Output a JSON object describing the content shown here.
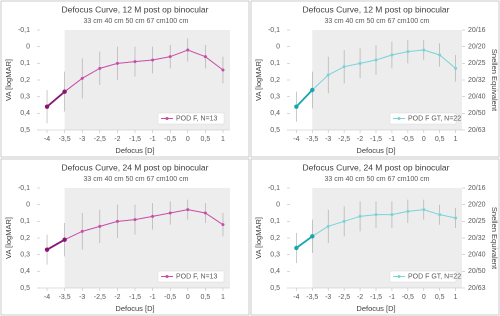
{
  "chart_data": [
    {
      "type": "line",
      "title": "Defocus Curve, 12 M post op binocular",
      "top_labels": [
        "33 cm",
        "40 cm",
        "50 cm",
        "67 cm",
        "100 cm"
      ],
      "x_label": "Defocus [D]",
      "y_label": "VA [logMAR]",
      "x": [
        -4,
        -3.5,
        -3,
        -2.5,
        -2,
        -1.5,
        -1,
        -0.5,
        0,
        0.5,
        1
      ],
      "xlim": [
        -4.2,
        1.2
      ],
      "xticks": [
        -4,
        {
          "value": -3.5,
          "label": "-3,5"
        },
        -3,
        {
          "value": -2.5,
          "label": "-2,5"
        },
        -2,
        {
          "value": -1.5,
          "label": "-1,5"
        },
        -1,
        {
          "value": -0.5,
          "label": "-0,5"
        },
        0,
        {
          "value": 0.5,
          "label": "0,5"
        },
        1
      ],
      "ylim": [
        0.5,
        -0.1
      ],
      "yticks": [
        {
          "value": -0.1,
          "label": "-0,1"
        },
        0,
        {
          "value": 0.1,
          "label": "0,1"
        },
        {
          "value": 0.2,
          "label": "0,2"
        },
        {
          "value": 0.3,
          "label": "0,3"
        },
        {
          "value": 0.4,
          "label": "0,4"
        },
        {
          "value": 0.5,
          "label": "0,5"
        }
      ],
      "series": [
        {
          "name": "POD F, N=13",
          "color": "#c84ba6",
          "dark_color": "#8a1570",
          "values": [
            0.36,
            0.27,
            0.19,
            0.13,
            0.1,
            0.09,
            0.08,
            0.06,
            0.02,
            0.06,
            0.14
          ],
          "errors": [
            0.1,
            0.12,
            0.12,
            0.1,
            0.1,
            0.09,
            0.08,
            0.07,
            0.07,
            0.07,
            0.08
          ]
        }
      ]
    },
    {
      "type": "line",
      "title": "Defocus Curve, 12 M post op binocular",
      "top_labels": [
        "33 cm",
        "40 cm",
        "50 cm",
        "67 cm",
        "100 cm"
      ],
      "x_label": "Defocus [D]",
      "y_label": "VA [logMAR]",
      "y2_label": "Snellen Equivalent",
      "x": [
        -4,
        -3.5,
        -3,
        -2.5,
        -2,
        -1.5,
        -1,
        -0.5,
        0,
        0.5,
        1
      ],
      "xlim": [
        -4.2,
        1.2
      ],
      "xticks": [
        -4,
        {
          "value": -3.5,
          "label": "-3,5"
        },
        -3,
        {
          "value": -2.5,
          "label": "-2,5"
        },
        -2,
        {
          "value": -1.5,
          "label": "-1,5"
        },
        -1,
        {
          "value": -0.5,
          "label": "-0,5"
        },
        0,
        {
          "value": 0.5,
          "label": "0,5"
        },
        1
      ],
      "ylim": [
        0.5,
        -0.1
      ],
      "yticks": [
        {
          "value": -0.1,
          "label": "-0,1"
        },
        0,
        {
          "value": 0.1,
          "label": "0,1"
        },
        {
          "value": 0.2,
          "label": "0,2"
        },
        {
          "value": 0.3,
          "label": "0,3"
        },
        {
          "value": 0.4,
          "label": "0,4"
        },
        {
          "value": 0.5,
          "label": "0,5"
        }
      ],
      "y2lim": [
        0.5,
        -0.1
      ],
      "y2ticks": [
        {
          "value": -0.1,
          "label": "20/16"
        },
        {
          "value": 0,
          "label": "20/20"
        },
        {
          "value": 0.1,
          "label": "20/25"
        },
        {
          "value": 0.2,
          "label": "20/32"
        },
        {
          "value": 0.3,
          "label": "20/40"
        },
        {
          "value": 0.4,
          "label": "20/50"
        },
        {
          "value": 0.5,
          "label": "20/63"
        }
      ],
      "series": [
        {
          "name": "POD F GT, N=22",
          "color": "#79d3d8",
          "dark_color": "#17a5ae",
          "values": [
            0.36,
            0.26,
            0.17,
            0.12,
            0.1,
            0.08,
            0.05,
            0.03,
            0.02,
            0.05,
            0.13
          ],
          "errors": [
            0.09,
            0.11,
            0.11,
            0.1,
            0.09,
            0.09,
            0.08,
            0.07,
            0.06,
            0.07,
            0.08
          ]
        }
      ]
    },
    {
      "type": "line",
      "title": "Defocus Curve, 24 M post op binocular",
      "top_labels": [
        "33 cm",
        "40 cm",
        "50 cm",
        "67 cm",
        "100 cm"
      ],
      "x_label": "Defocus [D]",
      "y_label": "VA [logMAR]",
      "x": [
        -4,
        -3.5,
        -3,
        -2.5,
        -2,
        -1.5,
        -1,
        -0.5,
        0,
        0.5,
        1
      ],
      "xlim": [
        -4.2,
        1.2
      ],
      "xticks": [
        -4,
        {
          "value": -3.5,
          "label": "-3,5"
        },
        -3,
        {
          "value": -2.5,
          "label": "-2,5"
        },
        -2,
        {
          "value": -1.5,
          "label": "-1,5"
        },
        -1,
        {
          "value": -0.5,
          "label": "-0,5"
        },
        0,
        {
          "value": 0.5,
          "label": "0,5"
        },
        1
      ],
      "ylim": [
        0.5,
        -0.1
      ],
      "yticks": [
        {
          "value": -0.1,
          "label": "-0,1"
        },
        0,
        {
          "value": 0.1,
          "label": "0,1"
        },
        {
          "value": 0.2,
          "label": "0,2"
        },
        {
          "value": 0.3,
          "label": "0,3"
        },
        {
          "value": 0.4,
          "label": "0,4"
        },
        {
          "value": 0.5,
          "label": "0,5"
        }
      ],
      "series": [
        {
          "name": "POD F, N=13",
          "color": "#c84ba6",
          "dark_color": "#8a1570",
          "values": [
            0.27,
            0.21,
            0.16,
            0.13,
            0.1,
            0.09,
            0.07,
            0.05,
            0.03,
            0.05,
            0.12
          ],
          "errors": [
            0.09,
            0.1,
            0.11,
            0.1,
            0.1,
            0.09,
            0.08,
            0.07,
            0.06,
            0.06,
            0.07
          ]
        }
      ]
    },
    {
      "type": "line",
      "title": "Defocus Curve, 24 M post op binocular",
      "top_labels": [
        "33 cm",
        "40 cm",
        "50 cm",
        "67 cm",
        "100 cm"
      ],
      "x_label": "Defocus [D]",
      "y_label": "VA [logMAR]",
      "y2_label": "Snellen Equivalent",
      "x": [
        -4,
        -3.5,
        -3,
        -2.5,
        -2,
        -1.5,
        -1,
        -0.5,
        0,
        0.5,
        1
      ],
      "xlim": [
        -4.2,
        1.2
      ],
      "xticks": [
        -4,
        {
          "value": -3.5,
          "label": "-3,5"
        },
        -3,
        {
          "value": -2.5,
          "label": "-2,5"
        },
        -2,
        {
          "value": -1.5,
          "label": "-1,5"
        },
        -1,
        {
          "value": -0.5,
          "label": "-0,5"
        },
        0,
        {
          "value": 0.5,
          "label": "0,5"
        },
        1
      ],
      "ylim": [
        0.5,
        -0.1
      ],
      "yticks": [
        {
          "value": -0.1,
          "label": "-0,1"
        },
        0,
        {
          "value": 0.1,
          "label": "0,1"
        },
        {
          "value": 0.2,
          "label": "0,2"
        },
        {
          "value": 0.3,
          "label": "0,3"
        },
        {
          "value": 0.4,
          "label": "0,4"
        },
        {
          "value": 0.5,
          "label": "0,5"
        }
      ],
      "y2lim": [
        0.5,
        -0.1
      ],
      "y2ticks": [
        {
          "value": -0.1,
          "label": "20/16"
        },
        {
          "value": 0,
          "label": "20/20"
        },
        {
          "value": 0.1,
          "label": "20/25"
        },
        {
          "value": 0.2,
          "label": "20/32"
        },
        {
          "value": 0.3,
          "label": "20/40"
        },
        {
          "value": 0.4,
          "label": "20/50"
        },
        {
          "value": 0.5,
          "label": "20/63"
        }
      ],
      "series": [
        {
          "name": "POD F GT, N=22",
          "color": "#79d3d8",
          "dark_color": "#17a5ae",
          "values": [
            0.26,
            0.19,
            0.13,
            0.1,
            0.07,
            0.06,
            0.06,
            0.04,
            0.03,
            0.06,
            0.08
          ],
          "errors": [
            0.09,
            0.1,
            0.1,
            0.09,
            0.09,
            0.08,
            0.08,
            0.07,
            0.06,
            0.06,
            0.06
          ]
        }
      ]
    }
  ]
}
